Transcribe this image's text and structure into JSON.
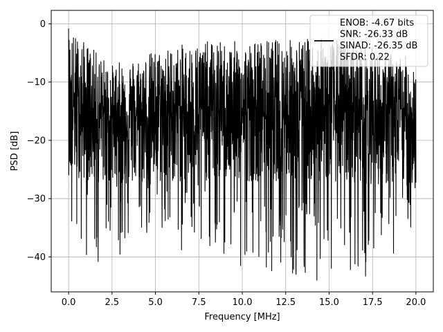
{
  "chart_data": {
    "type": "line",
    "title": "",
    "xlabel": "Frequency [MHz]",
    "ylabel": "PSD [dB]",
    "xlim": [
      -1.0,
      21.0
    ],
    "ylim": [
      -46.0,
      2.3
    ],
    "xticks": [
      0.0,
      2.5,
      5.0,
      7.5,
      10.0,
      12.5,
      15.0,
      17.5,
      20.0
    ],
    "xtick_labels": [
      "0.0",
      "2.5",
      "5.0",
      "7.5",
      "10.0",
      "12.5",
      "15.0",
      "17.5",
      "20.0"
    ],
    "yticks": [
      0,
      -10,
      -20,
      -30,
      -40
    ],
    "ytick_labels": [
      "0",
      "−10",
      "−20",
      "−30",
      "−40"
    ],
    "grid": true,
    "legend_placement": "top-right",
    "legend_entries": [
      "ENOB: -4.67 bits",
      "SNR: -26.33 dB",
      "SINAD: -26.35 dB",
      "SFDR: 0.22"
    ],
    "series": [
      {
        "color": "#000000",
        "x_start": 0.0,
        "x_end": 20.0,
        "y_envelope": {
          "x": [
            0.0,
            2.5,
            5.0,
            7.5,
            10.0,
            12.5,
            15.0,
            17.5,
            20.0
          ],
          "upper": [
            -0.8,
            -7.0,
            -4.5,
            -3.0,
            -3.0,
            -2.5,
            -2.5,
            -4.0,
            -6.0
          ],
          "lower": [
            -40.0,
            -41.0,
            -35.0,
            -38.0,
            -41.5,
            -43.0,
            -44.0,
            -43.0,
            -37.0
          ],
          "typical": [
            -14.0,
            -16.0,
            -15.5,
            -15.0,
            -15.0,
            -15.0,
            -15.0,
            -15.5,
            -16.0
          ]
        },
        "notable_points": [
          {
            "x": 0.0,
            "y": -0.8
          },
          {
            "x": 1.7,
            "y": -40.8
          },
          {
            "x": 6.5,
            "y": -38.8
          },
          {
            "x": 9.9,
            "y": -41.5
          },
          {
            "x": 13.1,
            "y": -43.0
          },
          {
            "x": 14.3,
            "y": -44.0
          },
          {
            "x": 17.1,
            "y": -43.3
          }
        ]
      }
    ]
  }
}
